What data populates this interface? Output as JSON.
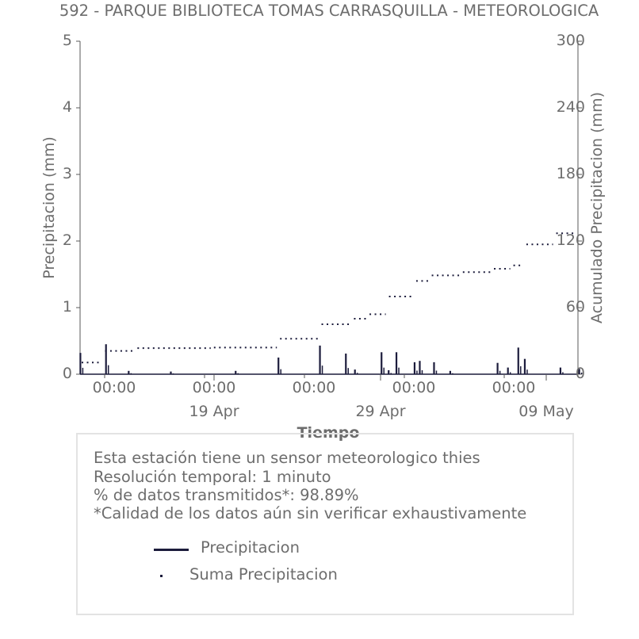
{
  "chart_data": {
    "type": "bar",
    "title": "592 - PARQUE BIBLIOTECA TOMAS CARRASQUILLA - METEOROLOGICA",
    "xlabel": "Tiempo",
    "ylabel": "Precipitacion (mm)",
    "ylabel_right": "Acumulado Precipitacion (mm)",
    "ylim": [
      0,
      5
    ],
    "ylim_right": [
      0,
      300
    ],
    "yticks": [
      "0",
      "1",
      "2",
      "3",
      "4",
      "5"
    ],
    "yticks_right": [
      "0",
      "60",
      "120",
      "180",
      "240",
      "300"
    ],
    "x_range": [
      "2023-04-09",
      "2023-05-11"
    ],
    "x_minor_ticks": [
      "00:00",
      "00:00",
      "00:00",
      "00:00",
      "00:00"
    ],
    "x_major_ticks": [
      "19 Apr",
      "29 Apr",
      "09 May"
    ],
    "grid": false,
    "series": [
      {
        "name": "Precipitacion",
        "style": "bars",
        "color": "#1c1c3c",
        "x": [
          "2023-04-09 00:30",
          "2023-04-10 16:00",
          "2023-04-12 03:00",
          "2023-04-14 20:00",
          "2023-04-19 00:00",
          "2023-04-21 18:00",
          "2023-04-24 10:00",
          "2023-04-26 02:00",
          "2023-04-26 16:00",
          "2023-04-28 09:00",
          "2023-04-28 20:00",
          "2023-04-29 08:00",
          "2023-04-30 12:00",
          "2023-04-30 20:00",
          "2023-05-01 18:00",
          "2023-05-02 19:00",
          "2023-05-05 20:00",
          "2023-05-06 12:00",
          "2023-05-07 04:00",
          "2023-05-07 14:00",
          "2023-05-09 21:00",
          "2023-05-11 02:00"
        ],
        "values": [
          0.32,
          0.45,
          0.05,
          0.04,
          0.05,
          0.25,
          0.43,
          0.31,
          0.07,
          0.33,
          0.06,
          0.33,
          0.18,
          0.2,
          0.18,
          0.05,
          0.17,
          0.1,
          0.4,
          0.23,
          0.1,
          0.08
        ]
      },
      {
        "name": "Suma Precipitacion",
        "style": "dotted",
        "color": "#1c1c3c",
        "axis": "right",
        "x": [
          "2023-04-09",
          "2023-04-10 12:00",
          "2023-04-12 14:00",
          "2023-04-17 12:00",
          "2023-04-21 18:00",
          "2023-04-24 10:00",
          "2023-04-26 12:00",
          "2023-04-27 12:00",
          "2023-04-28 18:00",
          "2023-04-30 12:00",
          "2023-05-01 12:00",
          "2023-05-03 12:00",
          "2023-05-05 12:00",
          "2023-05-06 18:00",
          "2023-05-07 14:00",
          "2023-05-09 12:00",
          "2023-05-11"
        ],
        "values": [
          10.5,
          21,
          23.5,
          24,
          32,
          45,
          50,
          54,
          70,
          84,
          89,
          92,
          95,
          98,
          117,
          127,
          128
        ]
      }
    ]
  },
  "info": {
    "line1": "Esta estación tiene un sensor meteorologico thies",
    "line2": "Resolución temporal: 1 minuto",
    "line3": "% de datos transmitidos*: 98.89%",
    "line4": "*Calidad de los datos aún sin verificar exhaustivamente"
  },
  "legend": {
    "precip_label": "Precipitacion",
    "sum_label": "Suma Precipitacion"
  },
  "colors": {
    "series": "#1c1c3c",
    "text": "#6d6d6d",
    "axis": "#5a5a5a",
    "box_border": "#e3e3e3"
  }
}
